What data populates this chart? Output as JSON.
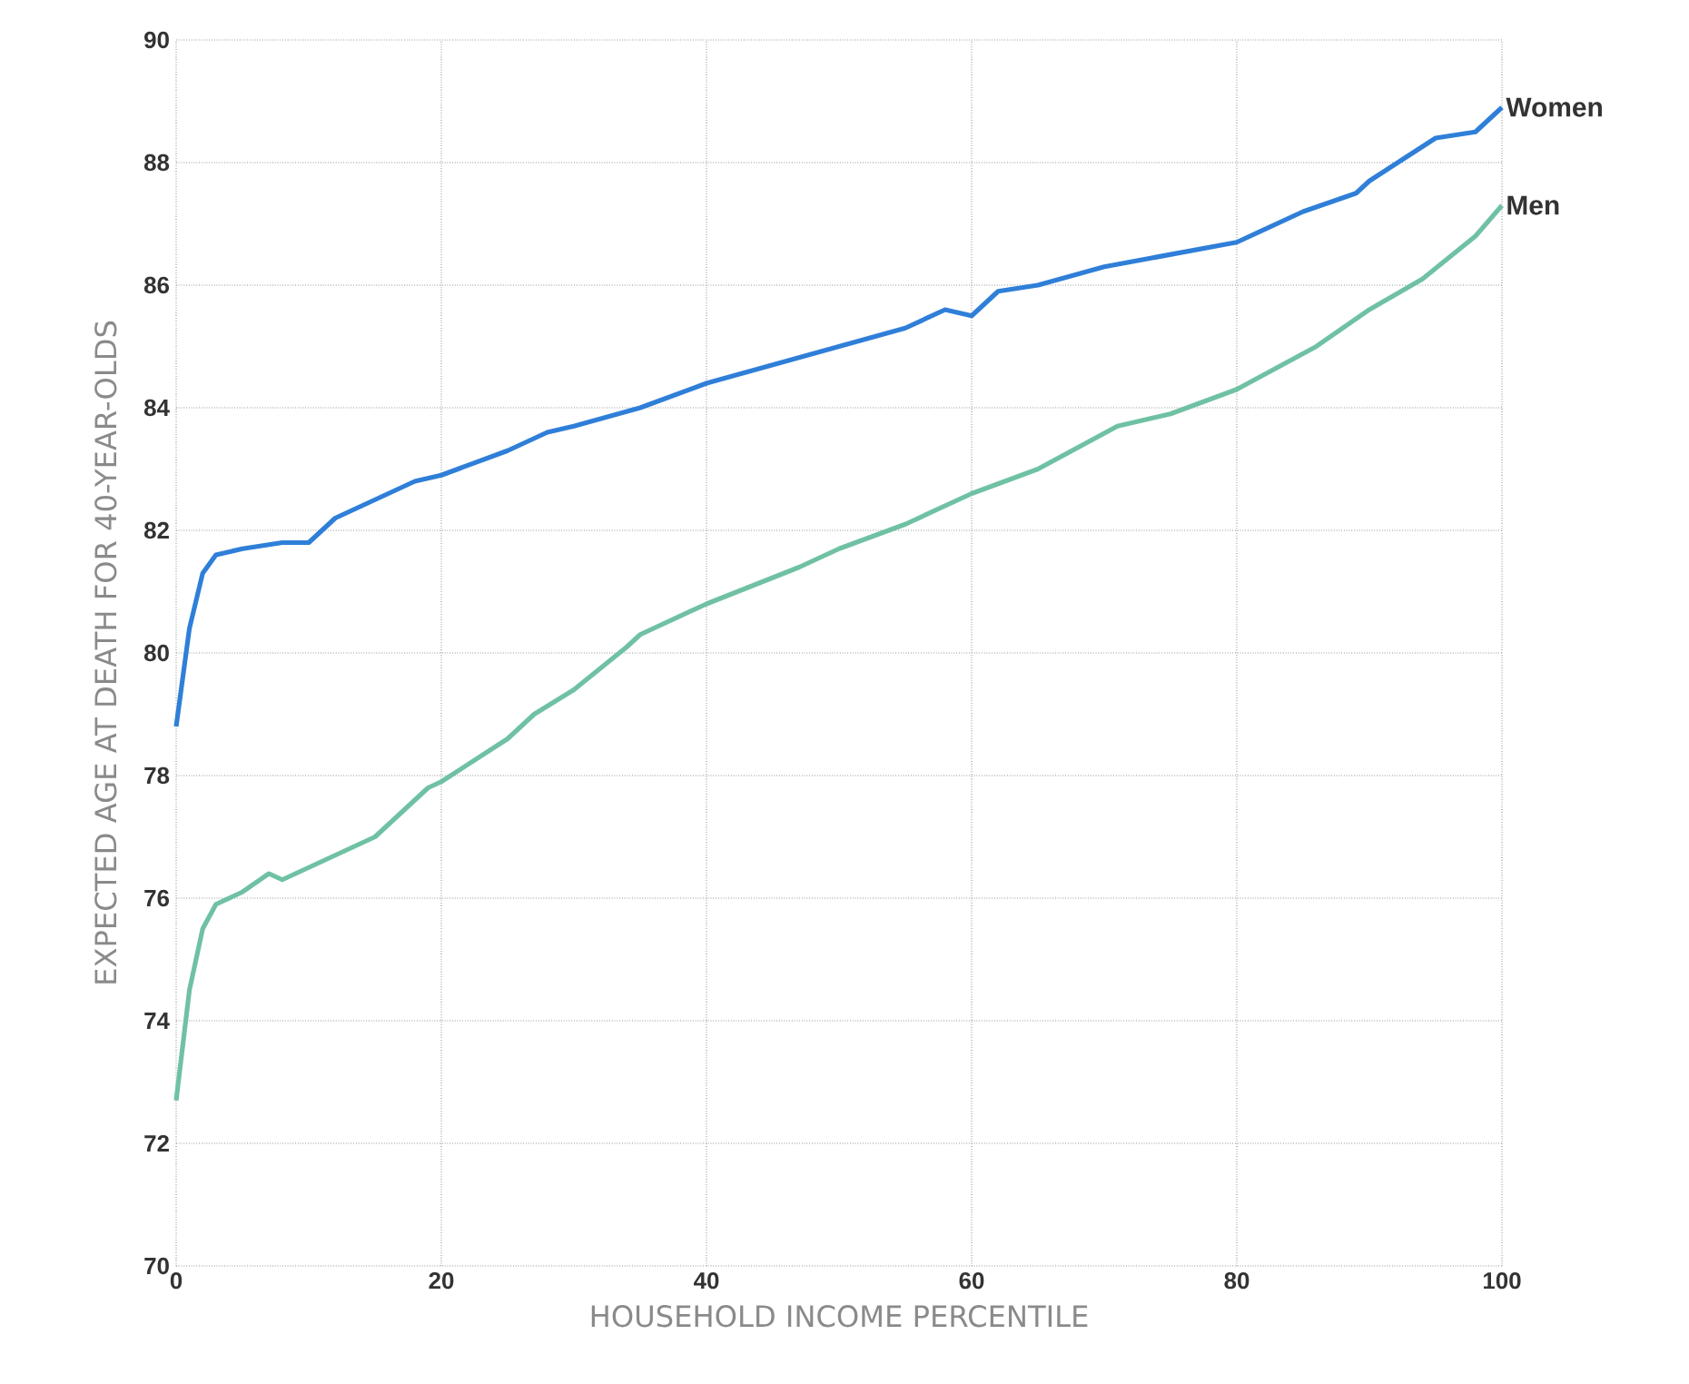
{
  "chart_data": {
    "type": "line",
    "xlabel": "HOUSEHOLD INCOME PERCENTILE",
    "ylabel": "EXPECTED AGE AT DEATH FOR 40-YEAR-OLDS",
    "xlim": [
      0,
      100
    ],
    "ylim": [
      70,
      90
    ],
    "xticks": [
      0,
      20,
      40,
      60,
      80,
      100
    ],
    "yticks": [
      70,
      72,
      74,
      76,
      78,
      80,
      82,
      84,
      86,
      88,
      90
    ],
    "grid": true,
    "series": [
      {
        "name": "Women",
        "color": "#2f7fd8",
        "x": [
          0,
          1,
          2,
          3,
          5,
          8,
          9,
          10,
          12,
          15,
          18,
          20,
          25,
          28,
          30,
          35,
          40,
          45,
          50,
          55,
          58,
          60,
          62,
          65,
          70,
          75,
          80,
          85,
          89,
          90,
          95,
          98,
          100
        ],
        "values": [
          78.8,
          80.4,
          81.3,
          81.6,
          81.7,
          81.8,
          81.8,
          81.8,
          82.2,
          82.5,
          82.8,
          82.9,
          83.3,
          83.6,
          83.7,
          84.0,
          84.4,
          84.7,
          85.0,
          85.3,
          85.6,
          85.5,
          85.9,
          86.0,
          86.3,
          86.5,
          86.7,
          87.2,
          87.5,
          87.7,
          88.4,
          88.5,
          88.9
        ]
      },
      {
        "name": "Men",
        "color": "#6fc1a3",
        "x": [
          0,
          1,
          2,
          3,
          5,
          7,
          8,
          11,
          15,
          19,
          20,
          25,
          27,
          30,
          34,
          35,
          40,
          47,
          50,
          55,
          60,
          65,
          71,
          75,
          80,
          86,
          90,
          94,
          98,
          100
        ],
        "values": [
          72.7,
          74.5,
          75.5,
          75.9,
          76.1,
          76.4,
          76.3,
          76.6,
          77.0,
          77.8,
          77.9,
          78.6,
          79.0,
          79.4,
          80.1,
          80.3,
          80.8,
          81.4,
          81.7,
          82.1,
          82.6,
          83.0,
          83.7,
          83.9,
          84.3,
          85.0,
          85.6,
          86.1,
          86.8,
          87.3
        ]
      }
    ]
  }
}
